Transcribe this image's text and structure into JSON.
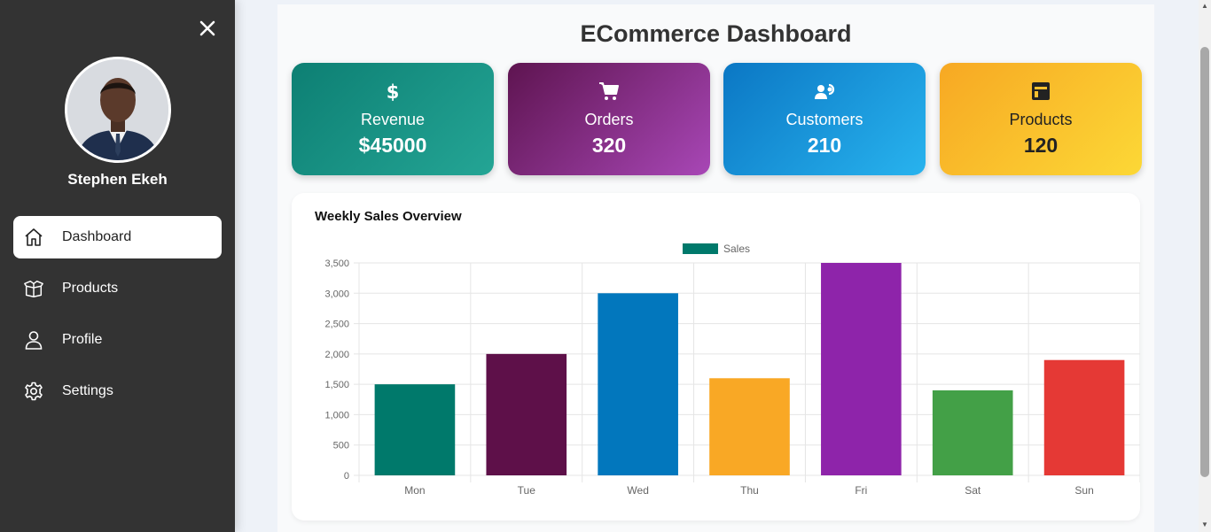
{
  "sidebar": {
    "user_name": "Stephen Ekeh",
    "nav": [
      {
        "label": "Dashboard",
        "icon": "home-icon",
        "active": true
      },
      {
        "label": "Products",
        "icon": "box-icon",
        "active": false
      },
      {
        "label": "Profile",
        "icon": "user-icon",
        "active": false
      },
      {
        "label": "Settings",
        "icon": "gear-icon",
        "active": false
      }
    ]
  },
  "main": {
    "title": "ECommerce Dashboard",
    "cards": [
      {
        "label": "Revenue",
        "value": "$45000",
        "icon": "dollar-icon"
      },
      {
        "label": "Orders",
        "value": "320",
        "icon": "cart-icon"
      },
      {
        "label": "Customers",
        "value": "210",
        "icon": "users-icon"
      },
      {
        "label": "Products",
        "value": "120",
        "icon": "package-icon"
      }
    ],
    "chart_title": "Weekly Sales Overview"
  },
  "chart_data": {
    "type": "bar",
    "title": "Weekly Sales Overview",
    "categories": [
      "Mon",
      "Tue",
      "Wed",
      "Thu",
      "Fri",
      "Sat",
      "Sun"
    ],
    "series": [
      {
        "name": "Sales",
        "values": [
          1500,
          2000,
          3000,
          1600,
          3500,
          1400,
          1900
        ]
      }
    ],
    "bar_colors": [
      "#00796b",
      "#5e1049",
      "#0277bd",
      "#f9a825",
      "#8e24aa",
      "#43a047",
      "#e53935"
    ],
    "legend_color": "#00796b",
    "ylim": [
      0,
      3500
    ],
    "yticks": [
      "0",
      "500",
      "1,000",
      "1,500",
      "2,000",
      "2,500",
      "3,000",
      "3,500"
    ],
    "grid": true,
    "legend": "top-center"
  }
}
